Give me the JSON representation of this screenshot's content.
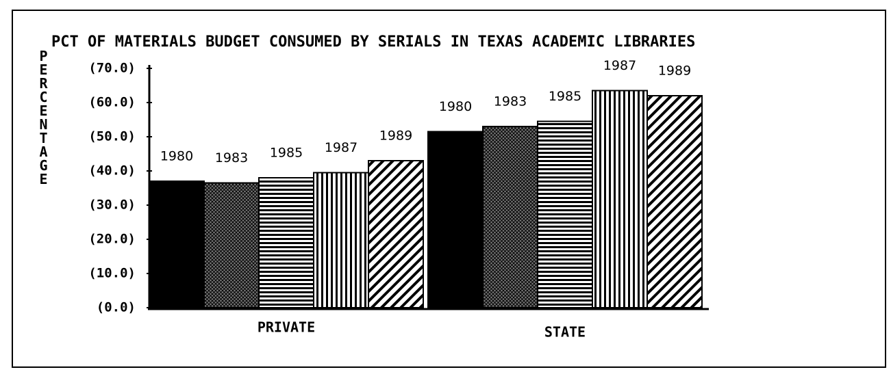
{
  "chart_data": {
    "type": "bar",
    "title": "PCT OF MATERIALS BUDGET CONSUMED BY SERIALS IN TEXAS ACADEMIC LIBRARIES",
    "y_label": "PERCENTAGE",
    "categories": [
      "PRIVATE",
      "STATE"
    ],
    "series": [
      {
        "name": "1980",
        "color": "#000000",
        "pattern": "solid",
        "values": [
          37,
          51.5
        ]
      },
      {
        "name": "1983",
        "color": "#000000",
        "pattern": "crosshatch",
        "values": [
          36.5,
          53
        ]
      },
      {
        "name": "1985",
        "color": "#000000",
        "pattern": "horizontal",
        "values": [
          38,
          54.5
        ]
      },
      {
        "name": "1987",
        "color": "#000000",
        "pattern": "vertical",
        "values": [
          39.5,
          63.5
        ]
      },
      {
        "name": "1989",
        "color": "#000000",
        "pattern": "diagonal",
        "values": [
          43,
          62
        ]
      }
    ],
    "ylim": [
      0,
      70
    ],
    "yticks": [
      {
        "value": 0,
        "label": "(0.0)"
      },
      {
        "value": 10,
        "label": "(10.0)"
      },
      {
        "value": 20,
        "label": "(20.0)"
      },
      {
        "value": 30,
        "label": "(30.0)"
      },
      {
        "value": 40,
        "label": "(40.0)"
      },
      {
        "value": 50,
        "label": "(50.0)"
      },
      {
        "value": 60,
        "label": "(60.0)"
      },
      {
        "value": 70,
        "label": "(70.0)"
      }
    ],
    "grid": false
  }
}
